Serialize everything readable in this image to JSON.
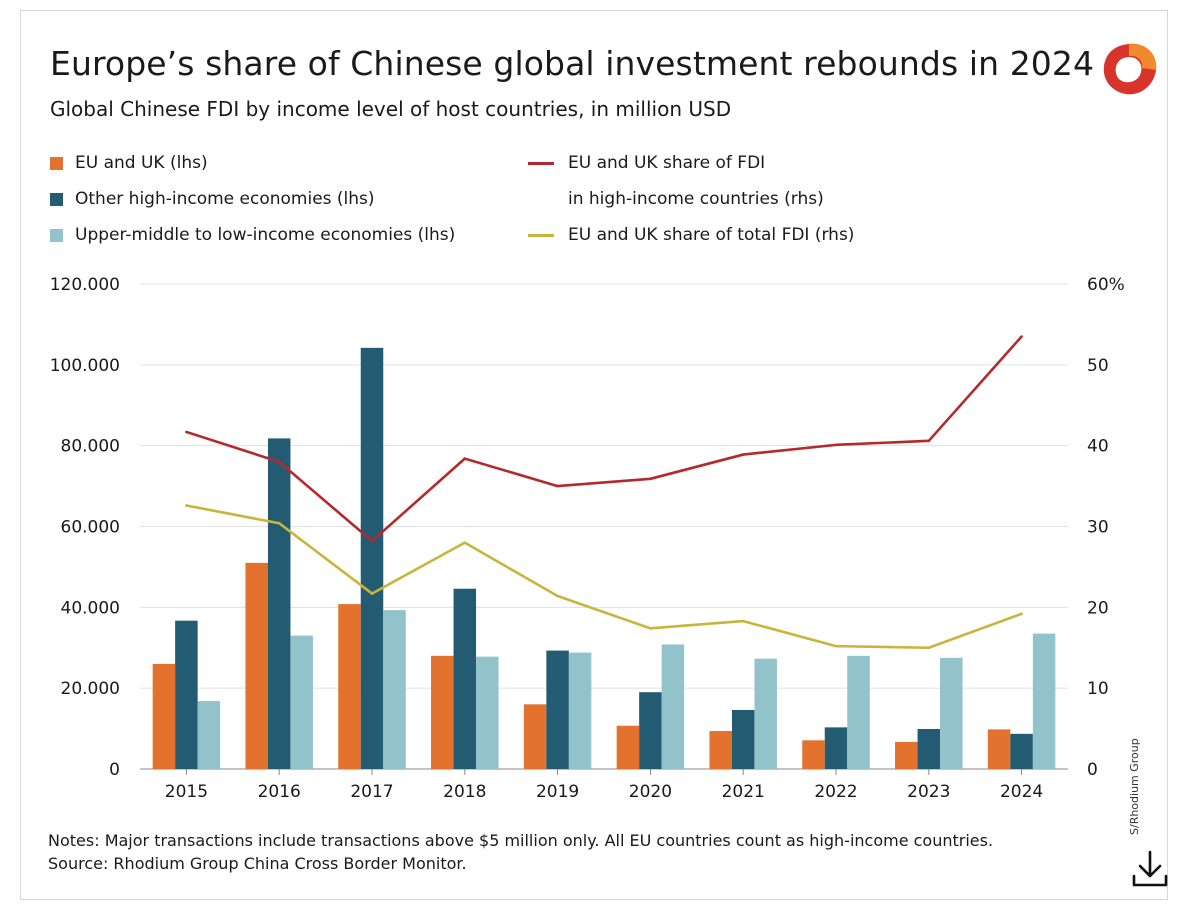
{
  "header": {
    "title": "Europe’s share of Chinese global investment rebounds in 2024",
    "subtitle": "Global Chinese FDI by income level of host countries, in million USD"
  },
  "legend": {
    "eu_uk": "EU and UK (lhs)",
    "other_high": "Other high-income economies (lhs)",
    "upper_mid_low": "Upper-middle to low-income economies (lhs)",
    "share_high_line1": "EU and UK share of FDI",
    "share_high_line2": "in high-income countries (rhs)",
    "share_total": "EU and UK share of total FDI (rhs)"
  },
  "footer": {
    "notes": "Notes: Major transactions include transactions above $5 million only. All EU countries count as high-income countries.",
    "source": "Source: Rhodium Group China Cross Border Monitor.",
    "credit": "S/Rhodium Group"
  },
  "colors": {
    "eu_uk": "#e2722e",
    "other_high": "#235b72",
    "upper_mid_low": "#92c3cb",
    "share_high": "#b3292e",
    "share_total": "#c9b53a",
    "grid": "#e1e1e1"
  },
  "icons": {
    "logo": "rhodium-logo-icon",
    "download": "download-icon"
  },
  "chart_data": {
    "type": "bar",
    "categories": [
      "2015",
      "2016",
      "2017",
      "2018",
      "2019",
      "2020",
      "2021",
      "2022",
      "2023",
      "2024"
    ],
    "series": [
      {
        "name": "EU and UK (lhs)",
        "axis": "left",
        "type": "bar",
        "values": [
          26000,
          51000,
          40800,
          28000,
          16000,
          10700,
          9400,
          7100,
          6700,
          9800
        ]
      },
      {
        "name": "Other high-income economies (lhs)",
        "axis": "left",
        "type": "bar",
        "values": [
          36700,
          81800,
          104200,
          44600,
          29300,
          19000,
          14600,
          10300,
          9900,
          8700
        ]
      },
      {
        "name": "Upper-middle to low-income economies (lhs)",
        "axis": "left",
        "type": "bar",
        "values": [
          16800,
          33000,
          39300,
          27800,
          28800,
          30800,
          27300,
          28000,
          27500,
          33500
        ]
      },
      {
        "name": "EU and UK share of FDI in high-income countries (rhs)",
        "axis": "right",
        "type": "line",
        "values": [
          41.7,
          38.0,
          28.2,
          38.4,
          35.0,
          35.9,
          38.9,
          40.1,
          40.6,
          53.5
        ]
      },
      {
        "name": "EU and UK share of total FDI (rhs)",
        "axis": "right",
        "type": "line",
        "values": [
          32.6,
          30.4,
          21.7,
          28.0,
          21.4,
          17.4,
          18.3,
          15.2,
          15.0,
          19.2
        ]
      }
    ],
    "ylim": [
      0,
      120000
    ],
    "yticks": [
      "0",
      "20.000",
      "40.000",
      "60.000",
      "80.000",
      "100.000",
      "120.000"
    ],
    "y2lim": [
      0,
      60
    ],
    "y2ticks": [
      "0",
      "10",
      "20",
      "30",
      "40",
      "50",
      "60%"
    ],
    "grid": true,
    "legend_position": "top"
  }
}
